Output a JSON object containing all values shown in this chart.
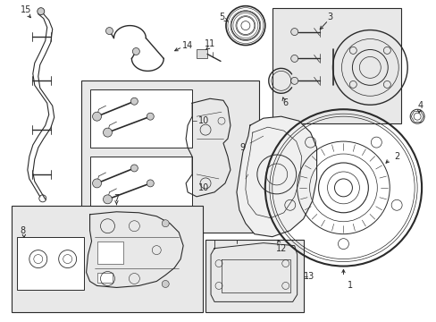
{
  "bg_color": "#ffffff",
  "line_color": "#2a2a2a",
  "box_fill": "#e8e8e8",
  "fig_width": 4.89,
  "fig_height": 3.6,
  "dpi": 100
}
